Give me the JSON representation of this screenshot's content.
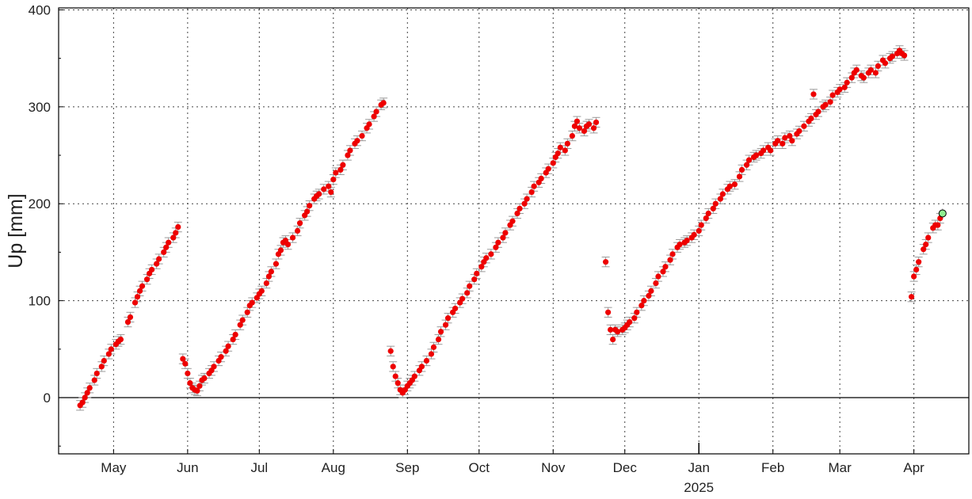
{
  "chart_data": {
    "type": "scatter",
    "ylabel": "Up [mm]",
    "ylim": [
      -58,
      402
    ],
    "xlim": [
      "2024-04-08",
      "2025-04-24"
    ],
    "yticks": [
      0,
      100,
      200,
      300,
      400
    ],
    "ytick_labels": [
      "0",
      "100",
      "200",
      "300",
      "400"
    ],
    "xticks": [
      {
        "date": "2024-05-01",
        "label": "May"
      },
      {
        "date": "2024-06-01",
        "label": "Jun"
      },
      {
        "date": "2024-07-01",
        "label": "Jul"
      },
      {
        "date": "2024-08-01",
        "label": "Aug"
      },
      {
        "date": "2024-09-01",
        "label": "Sep"
      },
      {
        "date": "2024-10-01",
        "label": "Oct"
      },
      {
        "date": "2024-11-01",
        "label": "Nov"
      },
      {
        "date": "2024-12-01",
        "label": "Dec"
      },
      {
        "date": "2025-01-01",
        "label": "Jan"
      },
      {
        "date": "2025-02-01",
        "label": "Feb"
      },
      {
        "date": "2025-03-01",
        "label": "Mar"
      },
      {
        "date": "2025-04-01",
        "label": "Apr"
      }
    ],
    "year_label": "2025",
    "grid": true,
    "zero_line": true,
    "error_bar_halfwidth_mm": 5,
    "colors": {
      "points": "#ee0000",
      "latest_point": "#90ee90",
      "error_bars": "#9a9a9a",
      "grid": "#444444"
    },
    "series": [
      {
        "values": [
          [
            "2024-04-17",
            -8
          ],
          [
            "2024-04-18",
            -5
          ],
          [
            "2024-04-19",
            0
          ],
          [
            "2024-04-20",
            5
          ],
          [
            "2024-04-21",
            10
          ],
          [
            "2024-04-23",
            18
          ],
          [
            "2024-04-24",
            25
          ],
          [
            "2024-04-26",
            32
          ],
          [
            "2024-04-27",
            38
          ],
          [
            "2024-04-29",
            45
          ],
          [
            "2024-04-30",
            50
          ],
          [
            "2024-05-02",
            55
          ],
          [
            "2024-05-03",
            58
          ],
          [
            "2024-05-04",
            60
          ],
          [
            "2024-05-07",
            78
          ],
          [
            "2024-05-08",
            83
          ],
          [
            "2024-05-10",
            98
          ],
          [
            "2024-05-11",
            104
          ],
          [
            "2024-05-12",
            110
          ],
          [
            "2024-05-13",
            115
          ],
          [
            "2024-05-15",
            122
          ],
          [
            "2024-05-16",
            128
          ],
          [
            "2024-05-17",
            132
          ],
          [
            "2024-05-19",
            138
          ],
          [
            "2024-05-20",
            143
          ],
          [
            "2024-05-22",
            150
          ],
          [
            "2024-05-23",
            155
          ],
          [
            "2024-05-24",
            160
          ],
          [
            "2024-05-26",
            165
          ],
          [
            "2024-05-27",
            170
          ],
          [
            "2024-05-28",
            176
          ],
          [
            "2024-05-30",
            40
          ],
          [
            "2024-05-31",
            35
          ],
          [
            "2024-06-01",
            25
          ],
          [
            "2024-06-02",
            15
          ],
          [
            "2024-06-03",
            10
          ],
          [
            "2024-06-04",
            8
          ],
          [
            "2024-06-05",
            7
          ],
          [
            "2024-06-06",
            12
          ],
          [
            "2024-06-07",
            18
          ],
          [
            "2024-06-08",
            20
          ],
          [
            "2024-06-10",
            25
          ],
          [
            "2024-06-11",
            28
          ],
          [
            "2024-06-12",
            32
          ],
          [
            "2024-06-14",
            38
          ],
          [
            "2024-06-15",
            42
          ],
          [
            "2024-06-17",
            48
          ],
          [
            "2024-06-18",
            53
          ],
          [
            "2024-06-20",
            60
          ],
          [
            "2024-06-21",
            65
          ],
          [
            "2024-06-23",
            75
          ],
          [
            "2024-06-24",
            80
          ],
          [
            "2024-06-26",
            88
          ],
          [
            "2024-06-27",
            95
          ],
          [
            "2024-06-28",
            98
          ],
          [
            "2024-06-30",
            103
          ],
          [
            "2024-07-01",
            107
          ],
          [
            "2024-07-02",
            110
          ],
          [
            "2024-07-04",
            118
          ],
          [
            "2024-07-05",
            125
          ],
          [
            "2024-07-06",
            130
          ],
          [
            "2024-07-08",
            138
          ],
          [
            "2024-07-09",
            148
          ],
          [
            "2024-07-10",
            152
          ],
          [
            "2024-07-11",
            160
          ],
          [
            "2024-07-12",
            162
          ],
          [
            "2024-07-13",
            158
          ],
          [
            "2024-07-15",
            165
          ],
          [
            "2024-07-17",
            172
          ],
          [
            "2024-07-18",
            180
          ],
          [
            "2024-07-20",
            188
          ],
          [
            "2024-07-21",
            192
          ],
          [
            "2024-07-22",
            198
          ],
          [
            "2024-07-24",
            205
          ],
          [
            "2024-07-25",
            208
          ],
          [
            "2024-07-26",
            210
          ],
          [
            "2024-07-28",
            215
          ],
          [
            "2024-07-30",
            218
          ],
          [
            "2024-07-31",
            212
          ],
          [
            "2024-08-01",
            225
          ],
          [
            "2024-08-02",
            232
          ],
          [
            "2024-08-04",
            235
          ],
          [
            "2024-08-05",
            240
          ],
          [
            "2024-08-07",
            250
          ],
          [
            "2024-08-08",
            255
          ],
          [
            "2024-08-10",
            262
          ],
          [
            "2024-08-11",
            265
          ],
          [
            "2024-08-13",
            270
          ],
          [
            "2024-08-15",
            278
          ],
          [
            "2024-08-16",
            282
          ],
          [
            "2024-08-18",
            290
          ],
          [
            "2024-08-19",
            295
          ],
          [
            "2024-08-21",
            302
          ],
          [
            "2024-08-22",
            304
          ],
          [
            "2024-08-25",
            48
          ],
          [
            "2024-08-26",
            32
          ],
          [
            "2024-08-27",
            22
          ],
          [
            "2024-08-28",
            15
          ],
          [
            "2024-08-29",
            8
          ],
          [
            "2024-08-30",
            5
          ],
          [
            "2024-08-31",
            8
          ],
          [
            "2024-09-01",
            12
          ],
          [
            "2024-09-02",
            15
          ],
          [
            "2024-09-03",
            18
          ],
          [
            "2024-09-04",
            22
          ],
          [
            "2024-09-06",
            28
          ],
          [
            "2024-09-07",
            32
          ],
          [
            "2024-09-09",
            38
          ],
          [
            "2024-09-11",
            45
          ],
          [
            "2024-09-12",
            52
          ],
          [
            "2024-09-14",
            60
          ],
          [
            "2024-09-15",
            68
          ],
          [
            "2024-09-17",
            75
          ],
          [
            "2024-09-18",
            82
          ],
          [
            "2024-09-20",
            88
          ],
          [
            "2024-09-21",
            92
          ],
          [
            "2024-09-23",
            98
          ],
          [
            "2024-09-24",
            102
          ],
          [
            "2024-09-26",
            108
          ],
          [
            "2024-09-27",
            115
          ],
          [
            "2024-09-29",
            122
          ],
          [
            "2024-09-30",
            128
          ],
          [
            "2024-10-02",
            135
          ],
          [
            "2024-10-03",
            140
          ],
          [
            "2024-10-04",
            144
          ],
          [
            "2024-10-06",
            148
          ],
          [
            "2024-10-08",
            155
          ],
          [
            "2024-10-09",
            160
          ],
          [
            "2024-10-11",
            165
          ],
          [
            "2024-10-12",
            170
          ],
          [
            "2024-10-14",
            178
          ],
          [
            "2024-10-15",
            182
          ],
          [
            "2024-10-17",
            190
          ],
          [
            "2024-10-18",
            195
          ],
          [
            "2024-10-20",
            200
          ],
          [
            "2024-10-21",
            205
          ],
          [
            "2024-10-23",
            212
          ],
          [
            "2024-10-24",
            218
          ],
          [
            "2024-10-26",
            222
          ],
          [
            "2024-10-27",
            226
          ],
          [
            "2024-10-29",
            232
          ],
          [
            "2024-10-30",
            236
          ],
          [
            "2024-11-01",
            242
          ],
          [
            "2024-11-02",
            248
          ],
          [
            "2024-11-03",
            252
          ],
          [
            "2024-11-04",
            258
          ],
          [
            "2024-11-06",
            255
          ],
          [
            "2024-11-07",
            262
          ],
          [
            "2024-11-09",
            270
          ],
          [
            "2024-11-10",
            280
          ],
          [
            "2024-11-11",
            285
          ],
          [
            "2024-11-12",
            278
          ],
          [
            "2024-11-14",
            275
          ],
          [
            "2024-11-15",
            280
          ],
          [
            "2024-11-16",
            282
          ],
          [
            "2024-11-18",
            278
          ],
          [
            "2024-11-19",
            284
          ],
          [
            "2024-11-23",
            140
          ],
          [
            "2024-11-24",
            88
          ],
          [
            "2024-11-25",
            70
          ],
          [
            "2024-11-26",
            60
          ],
          [
            "2024-11-27",
            70
          ],
          [
            "2024-11-28",
            68
          ],
          [
            "2024-11-30",
            70
          ],
          [
            "2024-12-01",
            72
          ],
          [
            "2024-12-02",
            75
          ],
          [
            "2024-12-03",
            78
          ],
          [
            "2024-12-05",
            82
          ],
          [
            "2024-12-06",
            88
          ],
          [
            "2024-12-08",
            95
          ],
          [
            "2024-12-09",
            100
          ],
          [
            "2024-12-11",
            105
          ],
          [
            "2024-12-12",
            110
          ],
          [
            "2024-12-14",
            118
          ],
          [
            "2024-12-15",
            125
          ],
          [
            "2024-12-17",
            130
          ],
          [
            "2024-12-18",
            135
          ],
          [
            "2024-12-20",
            142
          ],
          [
            "2024-12-21",
            148
          ],
          [
            "2024-12-23",
            155
          ],
          [
            "2024-12-24",
            158
          ],
          [
            "2024-12-26",
            160
          ],
          [
            "2024-12-27",
            162
          ],
          [
            "2024-12-29",
            165
          ],
          [
            "2024-12-30",
            168
          ],
          [
            "2025-01-01",
            172
          ],
          [
            "2025-01-02",
            178
          ],
          [
            "2025-01-04",
            185
          ],
          [
            "2025-01-05",
            190
          ],
          [
            "2025-01-07",
            195
          ],
          [
            "2025-01-08",
            200
          ],
          [
            "2025-01-10",
            205
          ],
          [
            "2025-01-11",
            210
          ],
          [
            "2025-01-13",
            215
          ],
          [
            "2025-01-14",
            218
          ],
          [
            "2025-01-16",
            220
          ],
          [
            "2025-01-18",
            228
          ],
          [
            "2025-01-19",
            235
          ],
          [
            "2025-01-21",
            240
          ],
          [
            "2025-01-22",
            245
          ],
          [
            "2025-01-24",
            248
          ],
          [
            "2025-01-25",
            250
          ],
          [
            "2025-01-27",
            252
          ],
          [
            "2025-01-28",
            255
          ],
          [
            "2025-01-30",
            258
          ],
          [
            "2025-01-31",
            255
          ],
          [
            "2025-02-02",
            262
          ],
          [
            "2025-02-03",
            265
          ],
          [
            "2025-02-05",
            262
          ],
          [
            "2025-02-06",
            268
          ],
          [
            "2025-02-08",
            270
          ],
          [
            "2025-02-09",
            265
          ],
          [
            "2025-02-11",
            272
          ],
          [
            "2025-02-12",
            275
          ],
          [
            "2025-02-14",
            280
          ],
          [
            "2025-02-16",
            285
          ],
          [
            "2025-02-17",
            288
          ],
          [
            "2025-02-18",
            313
          ],
          [
            "2025-02-19",
            292
          ],
          [
            "2025-02-20",
            295
          ],
          [
            "2025-02-22",
            300
          ],
          [
            "2025-02-23",
            302
          ],
          [
            "2025-02-25",
            305
          ],
          [
            "2025-02-26",
            312
          ],
          [
            "2025-02-28",
            315
          ],
          [
            "2025-03-01",
            318
          ],
          [
            "2025-03-03",
            320
          ],
          [
            "2025-03-04",
            325
          ],
          [
            "2025-03-06",
            330
          ],
          [
            "2025-03-07",
            335
          ],
          [
            "2025-03-08",
            338
          ],
          [
            "2025-03-10",
            332
          ],
          [
            "2025-03-11",
            330
          ],
          [
            "2025-03-13",
            335
          ],
          [
            "2025-03-14",
            338
          ],
          [
            "2025-03-16",
            335
          ],
          [
            "2025-03-17",
            342
          ],
          [
            "2025-03-19",
            348
          ],
          [
            "2025-03-20",
            345
          ],
          [
            "2025-03-22",
            350
          ],
          [
            "2025-03-23",
            352
          ],
          [
            "2025-03-25",
            355
          ],
          [
            "2025-03-26",
            358
          ],
          [
            "2025-03-27",
            355
          ],
          [
            "2025-03-28",
            353
          ],
          [
            "2025-03-31",
            104
          ],
          [
            "2025-04-01",
            125
          ],
          [
            "2025-04-02",
            132
          ],
          [
            "2025-04-03",
            140
          ],
          [
            "2025-04-05",
            153
          ],
          [
            "2025-04-06",
            158
          ],
          [
            "2025-04-07",
            165
          ],
          [
            "2025-04-09",
            175
          ],
          [
            "2025-04-10",
            178
          ],
          [
            "2025-04-11",
            178
          ],
          [
            "2025-04-12",
            185
          ]
        ]
      }
    ],
    "latest_point": [
      "2025-04-13",
      190
    ]
  }
}
